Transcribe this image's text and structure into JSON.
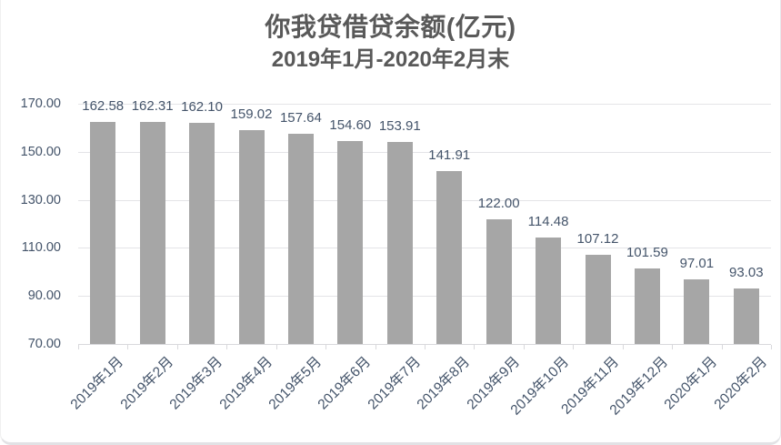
{
  "chart_data": {
    "type": "bar",
    "title": "你我贷借贷余额(亿元)",
    "subtitle": "2019年1月-2020年2月末",
    "categories": [
      "2019年1月",
      "2019年2月",
      "2019年3月",
      "2019年4月",
      "2019年5月",
      "2019年6月",
      "2019年7月",
      "2019年8月",
      "2019年9月",
      "2019年10月",
      "2019年11月",
      "2019年12月",
      "2020年1月",
      "2020年2月"
    ],
    "values": [
      162.58,
      162.31,
      162.1,
      159.02,
      157.64,
      154.6,
      153.91,
      141.91,
      122.0,
      114.48,
      107.12,
      101.59,
      97.01,
      93.03
    ],
    "value_labels": [
      "162.58",
      "162.31",
      "162.10",
      "159.02",
      "157.64",
      "154.60",
      "153.91",
      "141.91",
      "122.00",
      "114.48",
      "107.12",
      "101.59",
      "97.01",
      "93.03"
    ],
    "xlabel": "",
    "ylabel": "",
    "ylim": [
      70,
      170
    ],
    "yticks": [
      70,
      90,
      110,
      130,
      150,
      170
    ],
    "ytick_labels": [
      "70.00",
      "90.00",
      "110.00",
      "130.00",
      "150.00",
      "170.00"
    ],
    "grid": true,
    "legend": false,
    "colors": {
      "bar": "#a6a6a6",
      "gridline": "#e4e4e7",
      "axis_line": "#d9d9dc",
      "axis_text": "#44546a",
      "title_text": "#595959"
    }
  }
}
